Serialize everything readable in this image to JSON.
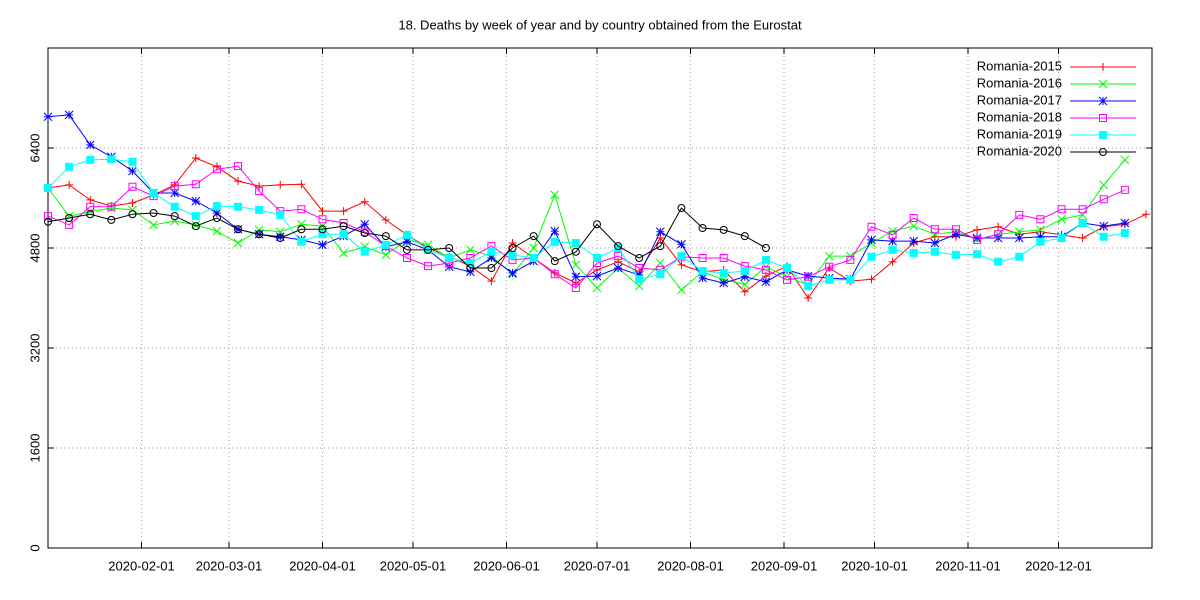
{
  "chart_data": {
    "type": "line",
    "title": "18. Deaths by week of year and by country obtained from the Eurostat",
    "xlim": [
      "2020-01-01",
      "2021-01-01"
    ],
    "xticks": [
      "2020-02-01",
      "2020-03-01",
      "2020-04-01",
      "2020-05-01",
      "2020-06-01",
      "2020-07-01",
      "2020-08-01",
      "2020-09-01",
      "2020-10-01",
      "2020-11-01",
      "2020-12-01"
    ],
    "ylim": [
      0,
      8000
    ],
    "yticks": [
      0,
      1600,
      3200,
      4800,
      6400
    ],
    "grid": true,
    "legend": "top-right",
    "x": [
      "2020-01-01",
      "2020-01-08",
      "2020-01-15",
      "2020-01-22",
      "2020-01-29",
      "2020-02-05",
      "2020-02-12",
      "2020-02-19",
      "2020-02-26",
      "2020-03-04",
      "2020-03-11",
      "2020-03-18",
      "2020-03-25",
      "2020-04-01",
      "2020-04-08",
      "2020-04-15",
      "2020-04-22",
      "2020-04-29",
      "2020-05-06",
      "2020-05-13",
      "2020-05-20",
      "2020-05-27",
      "2020-06-03",
      "2020-06-10",
      "2020-06-17",
      "2020-06-24",
      "2020-07-01",
      "2020-07-08",
      "2020-07-15",
      "2020-07-22",
      "2020-07-29",
      "2020-08-05",
      "2020-08-12",
      "2020-08-19",
      "2020-08-26",
      "2020-09-02",
      "2020-09-09",
      "2020-09-16",
      "2020-09-23",
      "2020-09-30",
      "2020-10-07",
      "2020-10-14",
      "2020-10-21",
      "2020-10-28",
      "2020-11-04",
      "2020-11-11",
      "2020-11-18",
      "2020-11-25",
      "2020-12-02",
      "2020-12-09",
      "2020-12-16",
      "2020-12-23",
      "2020-12-30"
    ],
    "series": [
      {
        "name": "Romania-2015",
        "color": "#ff0000",
        "marker": "plus",
        "values": [
          5760,
          5810,
          5570,
          5470,
          5520,
          5650,
          5810,
          6240,
          6100,
          5870,
          5790,
          5810,
          5820,
          5390,
          5390,
          5540,
          5250,
          5010,
          4800,
          4660,
          4510,
          4270,
          4880,
          4640,
          4400,
          4240,
          4450,
          4580,
          4420,
          4960,
          4530,
          4420,
          4450,
          4100,
          4350,
          4510,
          4000,
          4480,
          4270,
          4300,
          4580,
          4880,
          4980,
          4980,
          5090,
          5140,
          5020,
          5060,
          5010,
          4960,
          5140,
          5180,
          5340
        ]
      },
      {
        "name": "Romania-2016",
        "color": "#00ff00",
        "marker": "cross",
        "values": [
          5760,
          5310,
          5380,
          5440,
          5410,
          5170,
          5230,
          5170,
          5070,
          4880,
          5090,
          5060,
          5180,
          5150,
          4720,
          4820,
          4690,
          4930,
          4850,
          4640,
          4770,
          4670,
          4380,
          4800,
          5650,
          4530,
          4160,
          4480,
          4190,
          4560,
          4130,
          4420,
          4290,
          4220,
          4500,
          4340,
          4210,
          4670,
          4670,
          4880,
          5070,
          5150,
          5020,
          5060,
          4940,
          5020,
          5060,
          5090,
          5260,
          5330,
          5810,
          6210,
          null
        ]
      },
      {
        "name": "Romania-2017",
        "color": "#0000ff",
        "marker": "star",
        "values": [
          6900,
          6930,
          6450,
          6260,
          6030,
          5680,
          5680,
          5550,
          5360,
          5100,
          5020,
          4980,
          4930,
          4850,
          4990,
          5180,
          4820,
          4900,
          4770,
          4500,
          4420,
          4640,
          4400,
          4590,
          5070,
          4340,
          4350,
          4480,
          4370,
          5060,
          4860,
          4320,
          4240,
          4340,
          4260,
          4450,
          4350,
          4320,
          4300,
          4930,
          4910,
          4910,
          4880,
          5020,
          4960,
          4960,
          4960,
          4980,
          4980,
          5200,
          5150,
          5200,
          null
        ]
      },
      {
        "name": "Romania-2018",
        "color": "#ff00ff",
        "marker": "square",
        "values": [
          5310,
          5170,
          5460,
          5460,
          5780,
          5630,
          5790,
          5820,
          6060,
          6110,
          5710,
          5390,
          5420,
          5260,
          5200,
          5060,
          4830,
          4640,
          4510,
          4560,
          4640,
          4830,
          4610,
          4640,
          4380,
          4160,
          4560,
          4670,
          4480,
          4450,
          4660,
          4640,
          4640,
          4510,
          4450,
          4290,
          4340,
          4500,
          4610,
          5140,
          5010,
          5280,
          5100,
          5100,
          4930,
          5020,
          5330,
          5260,
          5420,
          5420,
          5580,
          5730,
          null
        ]
      },
      {
        "name": "Romania-2019",
        "color": "#00ffff",
        "marker": "filled-square",
        "values": [
          5760,
          6100,
          6210,
          6220,
          6180,
          5680,
          5460,
          5310,
          5470,
          5460,
          5410,
          5330,
          4900,
          5020,
          5020,
          4740,
          4850,
          5010,
          4770,
          4640,
          4560,
          4740,
          4690,
          4640,
          4900,
          4880,
          4640,
          4800,
          4300,
          4380,
          4670,
          4430,
          4400,
          4430,
          4610,
          4480,
          4190,
          4290,
          4290,
          4660,
          4770,
          4720,
          4740,
          4690,
          4700,
          4580,
          4660,
          4900,
          4960,
          5200,
          4980,
          5040,
          null
        ]
      },
      {
        "name": "Romania-2020",
        "color": "#000000",
        "marker": "circle",
        "values": [
          5220,
          5280,
          5340,
          5250,
          5340,
          5360,
          5310,
          5150,
          5280,
          5100,
          5020,
          4960,
          5100,
          5100,
          5150,
          5040,
          4990,
          4770,
          4770,
          4800,
          4480,
          4480,
          4800,
          4990,
          4590,
          4740,
          5180,
          4830,
          4640,
          4830,
          5440,
          5120,
          5090,
          4990,
          4800,
          null,
          null,
          null,
          null,
          null,
          null,
          null,
          null,
          null,
          null,
          null,
          null,
          null,
          null,
          null,
          null,
          null,
          null
        ]
      }
    ]
  }
}
